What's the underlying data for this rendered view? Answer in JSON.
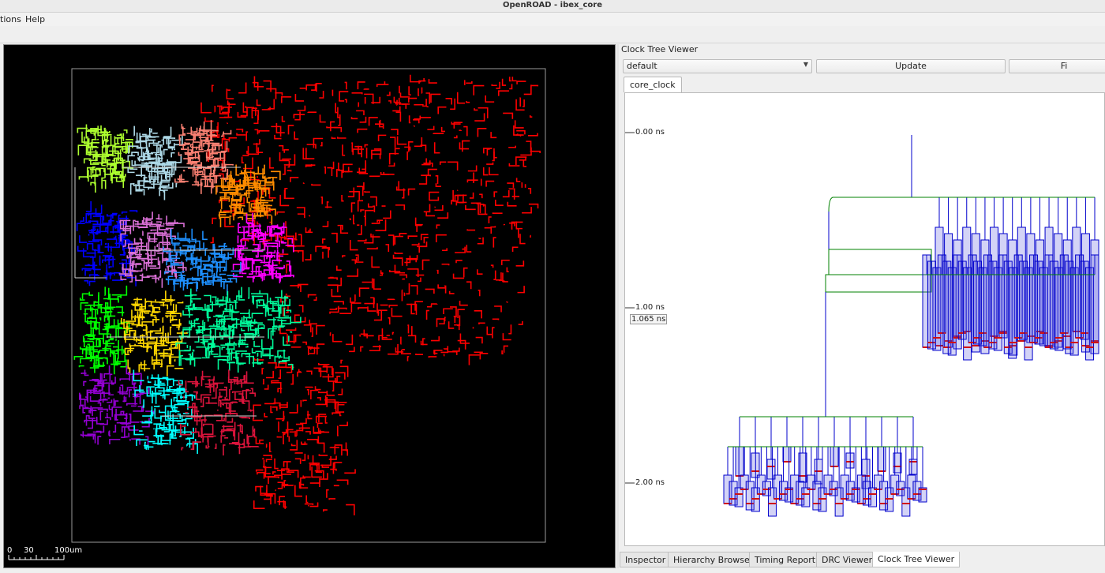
{
  "window": {
    "title": "OpenROAD - ibex_core"
  },
  "menu": {
    "items": [
      "tions",
      "Help"
    ]
  },
  "layout_view": {
    "scale_labels": [
      "0",
      "30",
      "100um"
    ],
    "background": "#000000"
  },
  "clock_tree_viewer": {
    "title": "Clock Tree Viewer",
    "corner_select": {
      "selected": "default"
    },
    "update_label": "Update",
    "fit_label": "Fi",
    "tab": "core_clock",
    "axis_labels": [
      "0.00 ns",
      "1.00 ns",
      "2.00 ns"
    ],
    "cursor_label": "1.065 ns",
    "tree_colors": {
      "wire": "#0000cc",
      "buffer_wire": "#008000",
      "sink": "#d01010"
    }
  },
  "dock_tabs": [
    "Inspector",
    "Hierarchy Browser",
    "Timing Report",
    "DRC Viewer",
    "Clock Tree Viewer"
  ],
  "active_dock_tab": "Clock Tree Viewer",
  "cluster_colors": [
    "#ff0000",
    "#adff2f",
    "#add8e6",
    "#fa8072",
    "#ff8c00",
    "#0000ff",
    "#da70d6",
    "#ff00ff",
    "#1e90ff",
    "#00ff00",
    "#ffd700",
    "#00fa9a",
    "#9400d3",
    "#00ffff",
    "#dc143c"
  ]
}
